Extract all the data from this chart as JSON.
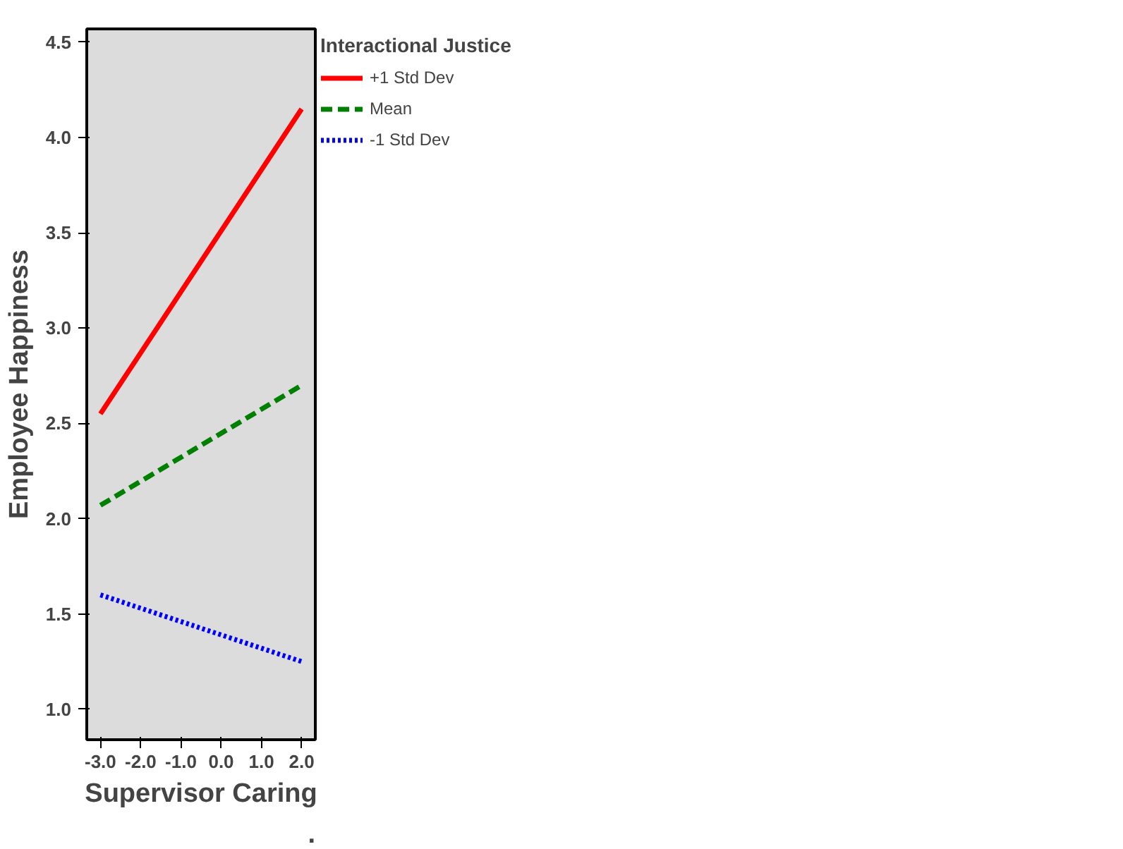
{
  "chart_data": {
    "type": "line",
    "xlabel": "Supervisor Caring",
    "ylabel": "Employee Happiness",
    "legend_title": "Interactional Justice",
    "legend": "top right",
    "grid": false,
    "marker": "none",
    "x": [
      -3,
      2
    ],
    "series": [
      {
        "name": "+1 Std Dev",
        "color": "#ff0000",
        "values": [
          2.55,
          4.15
        ],
        "line_style": "solid"
      },
      {
        "name": "Mean",
        "color": "#008000",
        "values": [
          2.07,
          2.7
        ],
        "line_style": "dashed"
      },
      {
        "name": "-1 Std Dev",
        "color": "#0000ff",
        "values": [
          1.6,
          1.25
        ],
        "line_style": "dotted"
      }
    ],
    "xlim": [
      -3.34,
      2.34
    ],
    "ylim": [
      0.84,
      4.57
    ],
    "xticks": [
      {
        "value": -3,
        "label": "-3.0"
      },
      {
        "value": -2,
        "label": "-2.0"
      },
      {
        "value": -1,
        "label": "-1.0"
      },
      {
        "value": 0,
        "label": "0.0"
      },
      {
        "value": 1,
        "label": "1.0"
      },
      {
        "value": 2,
        "label": "2.0"
      }
    ],
    "yticks": [
      {
        "value": 1,
        "label": "1.0"
      },
      {
        "value": 1.5,
        "label": "1.5"
      },
      {
        "value": 2,
        "label": "2.0"
      },
      {
        "value": 2.5,
        "label": "2.5"
      },
      {
        "value": 3,
        "label": "3.0"
      },
      {
        "value": 3.5,
        "label": "3.5"
      },
      {
        "value": 4,
        "label": "4.0"
      },
      {
        "value": 4.5,
        "label": "4.5"
      }
    ],
    "annotations": [
      "."
    ]
  }
}
